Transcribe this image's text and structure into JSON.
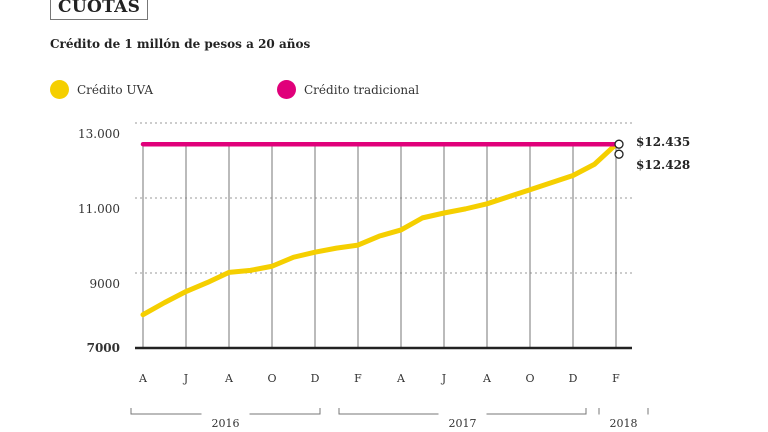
{
  "header": {
    "tag": "CUOTAS",
    "subtitle": "Crédito de 1 millón de pesos a 20 años"
  },
  "chart_data": {
    "type": "line",
    "title": "Crédito de 1 millón de pesos a 20 años",
    "ylim": [
      7000,
      13000
    ],
    "yticks": [
      7000,
      9000,
      11000,
      13000
    ],
    "ytick_labels": [
      "7000",
      "9000",
      "11.000",
      "13.000"
    ],
    "x": [
      "2016-04",
      "2016-05",
      "2016-06",
      "2016-07",
      "2016-08",
      "2016-09",
      "2016-10",
      "2016-11",
      "2016-12",
      "2017-01",
      "2017-02",
      "2017-03",
      "2017-04",
      "2017-05",
      "2017-06",
      "2017-07",
      "2017-08",
      "2017-09",
      "2017-10",
      "2017-11",
      "2017-12",
      "2018-01",
      "2018-02"
    ],
    "xtick_labels": [
      "A",
      "J",
      "A",
      "O",
      "D",
      "F",
      "A",
      "J",
      "A",
      "O",
      "D",
      "F"
    ],
    "year_labels": [
      "2016",
      "2017",
      "2018"
    ],
    "grid": true,
    "legend": "top-left",
    "series": [
      {
        "name": "Crédito UVA",
        "color": "#f5cf00",
        "values": [
          7888,
          8210,
          8506,
          8748,
          9018,
          9070,
          9180,
          9420,
          9555,
          9663,
          9744,
          9986,
          10148,
          10470,
          10600,
          10710,
          10845,
          11033,
          11220,
          11410,
          11600,
          11900,
          12428
        ]
      },
      {
        "name": "Crédito tradicional",
        "color": "#e0007a",
        "values": [
          12435,
          12435,
          12435,
          12435,
          12435,
          12435,
          12435,
          12435,
          12435,
          12435,
          12435,
          12435,
          12435,
          12435,
          12435,
          12435,
          12435,
          12435,
          12435,
          12435,
          12435,
          12435,
          12435
        ]
      }
    ],
    "annotations": [
      "$12.435",
      "$12.428"
    ]
  }
}
